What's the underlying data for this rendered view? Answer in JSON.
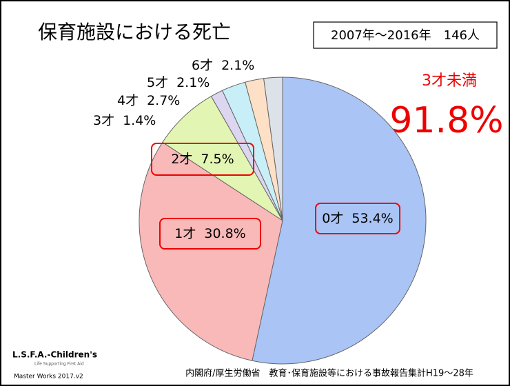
{
  "chart_data": {
    "type": "pie",
    "title": "保育施設における死亡",
    "subtitle": "2007年～2016年　146人",
    "annotations": [
      "3才未満",
      "91.8%"
    ],
    "source": "内閣府/厚生労働省　教育･保育施設等における事故報告集計H19～28年",
    "logo": [
      "L.S.F.A.-Children's",
      "Life Supporting First Aid",
      "Master Works 2017.v2"
    ],
    "categories": [
      "0才",
      "1才",
      "2才",
      "3才",
      "4才",
      "5才",
      "6才"
    ],
    "values": [
      53.4,
      30.8,
      7.5,
      1.4,
      2.7,
      2.1,
      2.1
    ],
    "value_labels": [
      "53.4%",
      "30.8%",
      "7.5%",
      "1.4%",
      "2.7%",
      "2.1%",
      "2.1%"
    ],
    "colors": [
      "#a9c4f5",
      "#f9b9b9",
      "#e3f5b2",
      "#dcd6f0",
      "#c8eef8",
      "#fde0c6",
      "#dde1e8"
    ]
  }
}
